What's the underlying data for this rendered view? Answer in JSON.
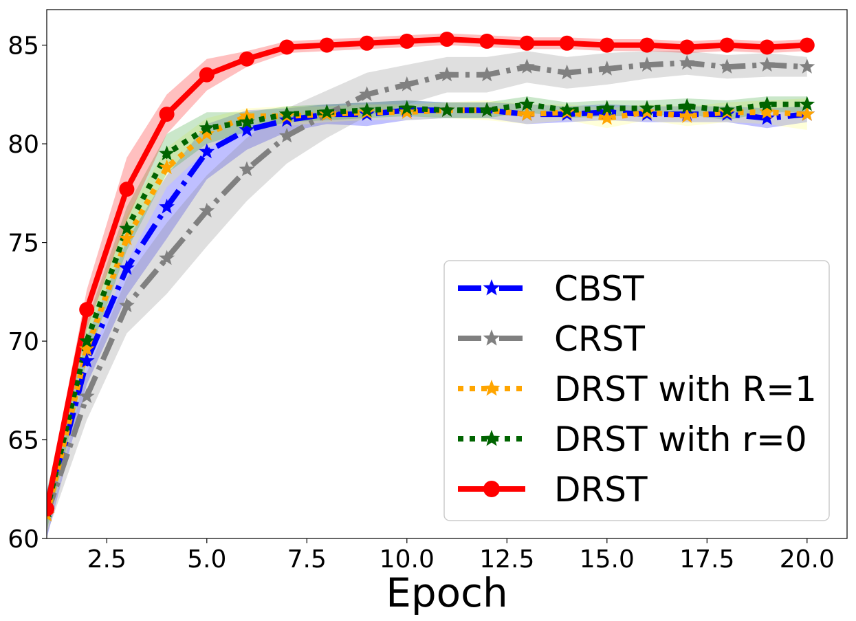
{
  "chart_data": {
    "type": "line",
    "title": "",
    "xlabel": "Epoch",
    "ylabel": "",
    "xlim": [
      1,
      21
    ],
    "ylim": [
      60,
      86.8
    ],
    "xticks": [
      2.5,
      5.0,
      7.5,
      10.0,
      12.5,
      15.0,
      17.5,
      20.0
    ],
    "xtick_labels": [
      "2.5",
      "5.0",
      "7.5",
      "10.0",
      "12.5",
      "15.0",
      "17.5",
      "20.0"
    ],
    "yticks": [
      60,
      65,
      70,
      75,
      80,
      85
    ],
    "ytick_labels": [
      "60",
      "65",
      "70",
      "75",
      "80",
      "85"
    ],
    "grid": false,
    "legend_position": "lower-right",
    "x": [
      1,
      2,
      3,
      4,
      5,
      6,
      7,
      8,
      9,
      10,
      11,
      12,
      13,
      14,
      15,
      16,
      17,
      18,
      19,
      20
    ],
    "series": [
      {
        "name": "CBST",
        "color": "#0000ff",
        "line_style": "dashdot",
        "marker": "star",
        "values": [
          61.2,
          69.0,
          73.7,
          76.8,
          79.6,
          80.7,
          81.2,
          81.5,
          81.5,
          81.7,
          81.7,
          81.7,
          81.5,
          81.5,
          81.6,
          81.5,
          81.5,
          81.5,
          81.3,
          81.5
        ],
        "band": [
          1.2,
          1.2,
          1.4,
          1.6,
          1.4,
          1.0,
          0.6,
          0.5,
          0.6,
          0.5,
          0.4,
          0.4,
          0.5,
          0.4,
          0.4,
          0.4,
          0.4,
          0.4,
          0.5,
          0.4
        ]
      },
      {
        "name": "CRST",
        "color": "#808080",
        "line_style": "dashdot",
        "marker": "star",
        "values": [
          61.2,
          67.2,
          71.8,
          74.2,
          76.6,
          78.7,
          80.4,
          81.5,
          82.5,
          83.0,
          83.5,
          83.5,
          83.9,
          83.6,
          83.8,
          84.0,
          84.1,
          83.9,
          84.0,
          83.9
        ],
        "band": [
          1.0,
          1.2,
          1.4,
          1.8,
          1.8,
          1.6,
          1.4,
          1.2,
          1.1,
          1.0,
          0.9,
          0.9,
          0.8,
          0.8,
          0.8,
          0.7,
          0.6,
          0.6,
          0.6,
          0.5
        ]
      },
      {
        "name": "DRST with R=1",
        "color": "#ffa500",
        "band_color": "#ffff66",
        "line_style": "dotted",
        "marker": "star",
        "values": [
          61.2,
          69.6,
          75.2,
          78.8,
          80.5,
          81.4,
          81.4,
          81.5,
          81.6,
          81.6,
          81.7,
          81.7,
          81.5,
          81.6,
          81.3,
          81.6,
          81.4,
          81.6,
          81.6,
          81.5
        ],
        "band": [
          1.0,
          1.0,
          1.2,
          1.0,
          0.8,
          0.4,
          0.5,
          0.4,
          0.4,
          0.4,
          0.4,
          0.5,
          0.5,
          0.4,
          0.5,
          0.4,
          0.5,
          0.5,
          0.6,
          0.8
        ]
      },
      {
        "name": "DRST with r=0",
        "color": "#006400",
        "band_color": "#2ca02c",
        "line_style": "dotted",
        "marker": "star",
        "values": [
          61.4,
          70.0,
          75.7,
          79.5,
          80.8,
          81.1,
          81.5,
          81.6,
          81.7,
          81.8,
          81.7,
          81.7,
          82.0,
          81.7,
          81.8,
          81.8,
          81.9,
          81.7,
          82.0,
          82.0
        ],
        "band": [
          1.0,
          1.0,
          1.1,
          1.0,
          0.8,
          0.5,
          0.4,
          0.4,
          0.4,
          0.4,
          0.4,
          0.4,
          0.4,
          0.4,
          0.4,
          0.4,
          0.4,
          0.5,
          0.4,
          0.4
        ]
      },
      {
        "name": "DRST",
        "color": "#ff0000",
        "line_style": "solid",
        "marker": "circle",
        "values": [
          61.5,
          71.6,
          77.7,
          81.5,
          83.5,
          84.3,
          84.9,
          85.0,
          85.1,
          85.2,
          85.3,
          85.2,
          85.1,
          85.1,
          85.0,
          85.0,
          84.9,
          85.0,
          84.9,
          85.0
        ],
        "band": [
          0.5,
          1.0,
          1.6,
          1.0,
          0.8,
          0.4,
          0.3,
          0.3,
          0.3,
          0.3,
          0.3,
          0.3,
          0.3,
          0.3,
          0.3,
          0.3,
          0.3,
          0.3,
          0.3,
          0.3
        ]
      }
    ]
  }
}
